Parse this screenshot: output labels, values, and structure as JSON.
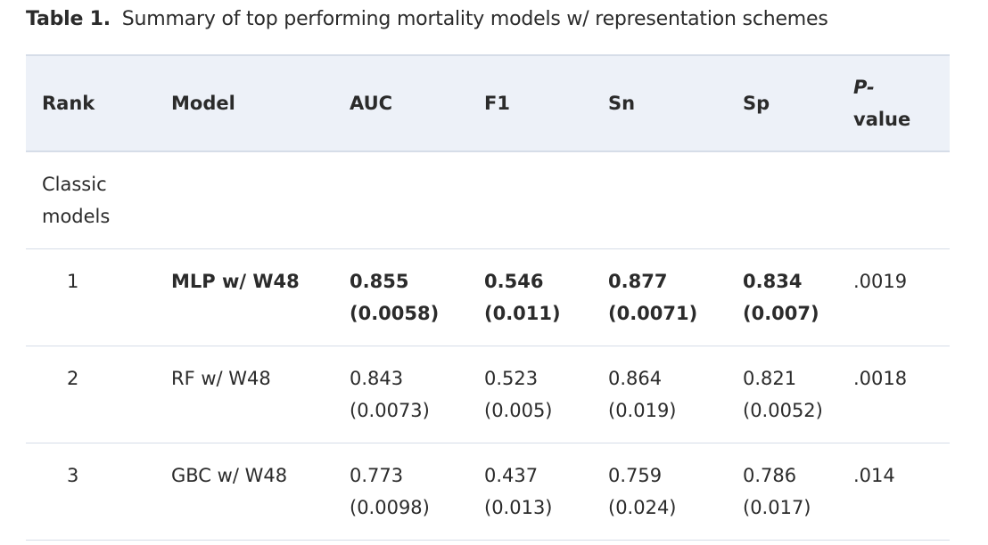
{
  "caption": {
    "label": "Table 1.",
    "text": "Summary of top performing mortality models w/ representation schemes"
  },
  "table": {
    "headers": {
      "rank": "Rank",
      "model": "Model",
      "auc": "AUC",
      "f1": "F1",
      "sn": "Sn",
      "sp": "Sp",
      "p_italic": "P-",
      "p_rest": "value"
    },
    "group": {
      "line1": "Classic",
      "line2": "models"
    },
    "rows": [
      {
        "rank": "1",
        "model": "MLP w/ W48",
        "auc": {
          "value": "0.855",
          "sd": "(0.0058)"
        },
        "f1": {
          "value": "0.546",
          "sd": "(0.011)"
        },
        "sn": {
          "value": "0.877",
          "sd": "(0.0071)"
        },
        "sp": {
          "value": "0.834",
          "sd": "(0.007)"
        },
        "p": ".0019"
      },
      {
        "rank": "2",
        "model": "RF w/ W48",
        "auc": {
          "value": "0.843",
          "sd": "(0.0073)"
        },
        "f1": {
          "value": "0.523",
          "sd": "(0.005)"
        },
        "sn": {
          "value": "0.864",
          "sd": "(0.019)"
        },
        "sp": {
          "value": "0.821",
          "sd": "(0.0052)"
        },
        "p": ".0018"
      },
      {
        "rank": "3",
        "model": "GBC w/ W48",
        "auc": {
          "value": "0.773",
          "sd": "(0.0098)"
        },
        "f1": {
          "value": "0.437",
          "sd": "(0.013)"
        },
        "sn": {
          "value": "0.759",
          "sd": "(0.024)"
        },
        "sp": {
          "value": "0.786",
          "sd": "(0.017)"
        },
        "p": ".014"
      }
    ]
  },
  "colors": {
    "header_background": "#edf1f8",
    "rule": "#d6dde8",
    "text": "#2b2b2b"
  }
}
